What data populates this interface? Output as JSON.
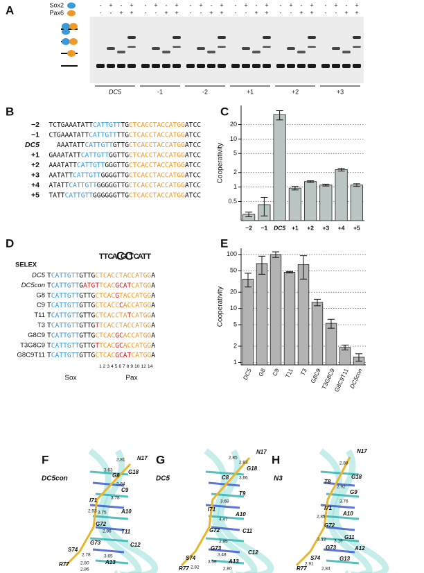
{
  "panel_labels": [
    "A",
    "B",
    "C",
    "D",
    "E",
    "F",
    "G",
    "H"
  ],
  "gel": {
    "row_labels": [
      "Sox2",
      "Pax6"
    ],
    "sox2": [
      "-",
      "+",
      "-",
      "+",
      "-",
      "+",
      "-",
      "+",
      "-",
      "+",
      "-",
      "+",
      "-",
      "+",
      "-",
      "+",
      "-",
      "+",
      "-",
      "+",
      "-",
      "+",
      "-",
      "+"
    ],
    "pax6": [
      "-",
      "-",
      "+",
      "+",
      "-",
      "-",
      "+",
      "+",
      "-",
      "-",
      "+",
      "+",
      "-",
      "-",
      "+",
      "+",
      "-",
      "-",
      "+",
      "+",
      "-",
      "-",
      "+",
      "+"
    ],
    "groups": [
      "DC5",
      "-1",
      "-2",
      "+1",
      "+2",
      "+3"
    ],
    "italic": [
      0
    ]
  },
  "sequences": [
    {
      "label": "−2",
      "segments": [
        {
          "text": "TCTGAAATATT",
          "color": "#111111"
        },
        {
          "text": "CATTGTT",
          "color": "#3a9ad9"
        },
        {
          "text": "TG",
          "color": "#111111"
        },
        {
          "text": "CTCACCTACCATGG",
          "color": "#ee9a2a"
        },
        {
          "text": "ATCC",
          "color": "#111111"
        }
      ]
    },
    {
      "label": "−1",
      "segments": [
        {
          "text": "CTGAAATATT",
          "color": "#111111"
        },
        {
          "text": "CATTGTT",
          "color": "#3a9ad9"
        },
        {
          "text": "TTG",
          "color": "#111111"
        },
        {
          "text": "CTCACCTACCATGG",
          "color": "#ee9a2a"
        },
        {
          "text": "ATCC",
          "color": "#111111"
        }
      ]
    },
    {
      "label": "DC5",
      "italic": true,
      "segments": [
        {
          "text": "AAATATT",
          "color": "#111111"
        },
        {
          "text": "CATTGTT",
          "color": "#3a9ad9"
        },
        {
          "text": "GTTG",
          "color": "#111111"
        },
        {
          "text": "CTCACCTACCATGG",
          "color": "#ee9a2a"
        },
        {
          "text": "ATCC",
          "color": "#111111"
        }
      ]
    },
    {
      "label": "+1",
      "segments": [
        {
          "text": "GAAATATT",
          "color": "#111111"
        },
        {
          "text": "CATTGTT",
          "color": "#3a9ad9"
        },
        {
          "text": "GGTTG",
          "color": "#111111"
        },
        {
          "text": "CTCACCTACCATGG",
          "color": "#ee9a2a"
        },
        {
          "text": "ATCC",
          "color": "#111111"
        }
      ]
    },
    {
      "label": "+2",
      "segments": [
        {
          "text": "AAATATT",
          "color": "#111111"
        },
        {
          "text": "CATTGTT",
          "color": "#3a9ad9"
        },
        {
          "text": "GGGTTG",
          "color": "#111111"
        },
        {
          "text": "CTCACCTACCATGG",
          "color": "#ee9a2a"
        },
        {
          "text": "ATCC",
          "color": "#111111"
        }
      ]
    },
    {
      "label": "+3",
      "segments": [
        {
          "text": "AATATT",
          "color": "#111111"
        },
        {
          "text": "CATTGTT",
          "color": "#3a9ad9"
        },
        {
          "text": "GGGGTTG",
          "color": "#111111"
        },
        {
          "text": "CTCACCTACCATGG",
          "color": "#ee9a2a"
        },
        {
          "text": "ATCC",
          "color": "#111111"
        }
      ]
    },
    {
      "label": "+4",
      "segments": [
        {
          "text": "ATATT",
          "color": "#111111"
        },
        {
          "text": "CATTGTT",
          "color": "#3a9ad9"
        },
        {
          "text": "GGGGGTTG",
          "color": "#111111"
        },
        {
          "text": "CTCACCTACCATGG",
          "color": "#ee9a2a"
        },
        {
          "text": "ATCC",
          "color": "#111111"
        }
      ]
    },
    {
      "label": "+5",
      "segments": [
        {
          "text": "TATT",
          "color": "#111111"
        },
        {
          "text": "CATTGTT",
          "color": "#3a9ad9"
        },
        {
          "text": "GGGGGGTTG",
          "color": "#111111"
        },
        {
          "text": "CTCACCTACCATGG",
          "color": "#ee9a2a"
        },
        {
          "text": "ATCC",
          "color": "#111111"
        }
      ]
    }
  ],
  "chart_data": [
    {
      "type": "bar",
      "y_label": "Cooperativity",
      "log_scale": true,
      "grid": true,
      "color": "#b9c4c3",
      "categories": [
        "−2",
        "−1",
        "DC5",
        "+1",
        "+2",
        "+3",
        "+4",
        "+5"
      ],
      "italic": [
        2
      ],
      "values": [
        0.27,
        0.43,
        32,
        0.95,
        1.3,
        1.1,
        2.3,
        1.1
      ],
      "errors": [
        0.03,
        0.18,
        7,
        0.08,
        0.05,
        0.05,
        0.15,
        0.07
      ],
      "ylim": [
        0.2,
        50
      ],
      "yticks": [
        0.5,
        1,
        2,
        5,
        10,
        20
      ]
    },
    {
      "type": "bar",
      "y_label": "Cooperativity",
      "log_scale": true,
      "grid": true,
      "color": "#b3b3b3",
      "categories": [
        "DC5",
        "G8",
        "C9",
        "T11",
        "T3",
        "G8C9",
        "T3G8C9",
        "G8C9T11",
        "DC5con"
      ],
      "italic": [
        0,
        8
      ],
      "values": [
        35,
        68,
        100,
        47,
        65,
        13,
        5.3,
        1.9,
        1.25
      ],
      "errors": [
        10,
        25,
        12,
        1.5,
        30,
        1.8,
        1,
        0.2,
        0.2
      ],
      "ylim": [
        0.9,
        130
      ],
      "yticks": [
        1,
        2,
        5,
        10,
        20,
        50,
        100
      ]
    }
  ],
  "selex": {
    "title": "SELEX",
    "logo": [
      "T",
      "T",
      "C",
      "A",
      "C",
      "G",
      "C",
      "T",
      "C",
      "A",
      "T",
      "T"
    ],
    "logo_colors": [
      "#d6262b",
      "#d6262b",
      "#2a50c8",
      "#2a9a3a",
      "#2a50c8",
      "#e5a020",
      "#2a50c8",
      "#d6262b",
      "#2a50c8",
      "#2a9a3a",
      "#d6262b",
      "#d6262b"
    ],
    "rows": [
      {
        "name": "DC5",
        "italic": true,
        "segments": [
          {
            "text": "T",
            "color": "#111111"
          },
          {
            "text": "CATTGTT",
            "color": "#3a9ad9"
          },
          {
            "text": "GTTG",
            "color": "#111111"
          },
          {
            "text": "CTCACCTACCATGG",
            "color": "#ee9a2a"
          },
          {
            "text": "A",
            "color": "#111111"
          }
        ]
      },
      {
        "name": "DC5con",
        "italic": true,
        "segments": [
          {
            "text": "T",
            "color": "#111111"
          },
          {
            "text": "CATTGTT",
            "color": "#3a9ad9"
          },
          {
            "text": "G",
            "color": "#111111"
          },
          {
            "text": "ATGT",
            "color": "#d62020"
          },
          {
            "text": "TCAC",
            "color": "#ee9a2a"
          },
          {
            "text": "GCAT",
            "color": "#d62020"
          },
          {
            "text": "CATGG",
            "color": "#ee9a2a"
          },
          {
            "text": "A",
            "color": "#111111"
          }
        ]
      },
      {
        "name": "G8",
        "segments": [
          {
            "text": "T",
            "color": "#111111"
          },
          {
            "text": "CATTGTT",
            "color": "#3a9ad9"
          },
          {
            "text": "GTTG",
            "color": "#111111"
          },
          {
            "text": "CTCAC",
            "color": "#ee9a2a"
          },
          {
            "text": "G",
            "color": "#d62020"
          },
          {
            "text": "TACCATGG",
            "color": "#ee9a2a"
          },
          {
            "text": "A",
            "color": "#111111"
          }
        ]
      },
      {
        "name": "C9",
        "segments": [
          {
            "text": "T",
            "color": "#111111"
          },
          {
            "text": "CATTGTT",
            "color": "#3a9ad9"
          },
          {
            "text": "GTTG",
            "color": "#111111"
          },
          {
            "text": "CTCACC",
            "color": "#ee9a2a"
          },
          {
            "text": "C",
            "color": "#d62020"
          },
          {
            "text": "ACCATGG",
            "color": "#ee9a2a"
          },
          {
            "text": "A",
            "color": "#111111"
          }
        ]
      },
      {
        "name": "T11",
        "segments": [
          {
            "text": "T",
            "color": "#111111"
          },
          {
            "text": "CATTGTT",
            "color": "#3a9ad9"
          },
          {
            "text": "GTTG",
            "color": "#111111"
          },
          {
            "text": "CTCACCTA",
            "color": "#ee9a2a"
          },
          {
            "text": "T",
            "color": "#d62020"
          },
          {
            "text": "CATGG",
            "color": "#ee9a2a"
          },
          {
            "text": "A",
            "color": "#111111"
          }
        ]
      },
      {
        "name": "T3",
        "segments": [
          {
            "text": "T",
            "color": "#111111"
          },
          {
            "text": "CATTGTT",
            "color": "#3a9ad9"
          },
          {
            "text": "GTTG",
            "color": "#111111"
          },
          {
            "text": "T",
            "color": "#d62020"
          },
          {
            "text": "TCACCTACCATGG",
            "color": "#ee9a2a"
          },
          {
            "text": "A",
            "color": "#111111"
          }
        ]
      },
      {
        "name": "G8C9",
        "segments": [
          {
            "text": "T",
            "color": "#111111"
          },
          {
            "text": "CATTGTT",
            "color": "#3a9ad9"
          },
          {
            "text": "GTTG",
            "color": "#111111"
          },
          {
            "text": "CTCAC",
            "color": "#ee9a2a"
          },
          {
            "text": "GC",
            "color": "#d62020"
          },
          {
            "text": "ACCATGG",
            "color": "#ee9a2a"
          },
          {
            "text": "A",
            "color": "#111111"
          }
        ]
      },
      {
        "name": "T3G8C9",
        "segments": [
          {
            "text": "T",
            "color": "#111111"
          },
          {
            "text": "CATTGTT",
            "color": "#3a9ad9"
          },
          {
            "text": "GTTG",
            "color": "#111111"
          },
          {
            "text": "T",
            "color": "#d62020"
          },
          {
            "text": "TCAC",
            "color": "#ee9a2a"
          },
          {
            "text": "GC",
            "color": "#d62020"
          },
          {
            "text": "ACCATGG",
            "color": "#ee9a2a"
          },
          {
            "text": "A",
            "color": "#111111"
          }
        ]
      },
      {
        "name": "G8C9T11",
        "segments": [
          {
            "text": "T",
            "color": "#111111"
          },
          {
            "text": "CATTGTT",
            "color": "#3a9ad9"
          },
          {
            "text": "GTTG",
            "color": "#111111"
          },
          {
            "text": "CTCAC",
            "color": "#ee9a2a"
          },
          {
            "text": "GCAT",
            "color": "#d62020"
          },
          {
            "text": "CATGG",
            "color": "#ee9a2a"
          },
          {
            "text": "A",
            "color": "#111111"
          }
        ]
      }
    ],
    "positions": "1 2 3 4 5 6 7 8 9 10 12 14",
    "sox": "Sox",
    "pax": "Pax"
  },
  "structures": [
    {
      "title": "DC5con",
      "labels": [
        "N17",
        "2.81",
        "G18",
        "3.63",
        "G8",
        "2.84",
        "C9",
        "3.78",
        "I71",
        "A10",
        "2.93",
        "3.75",
        "G72",
        "2.86",
        "T11",
        "G73",
        "S74",
        "C12",
        "2.78",
        "3.65",
        "A13",
        "R77",
        "2.80",
        "2.86"
      ]
    },
    {
      "title": "DC5",
      "labels": [
        "N17",
        "2.85",
        "2.93",
        "G18",
        "C8",
        "3.66",
        "T9",
        "3.68",
        "I71",
        "A10",
        "4.47",
        "G72",
        "C11",
        "2.95",
        "G73",
        "3.48",
        "C12",
        "A13",
        "S74",
        "2.82",
        "3.58",
        "R77",
        "2.80"
      ]
    },
    {
      "title": "N3",
      "labels": [
        "N17",
        "2.88",
        "G18",
        "T8",
        "2.92",
        "G9",
        "3.76",
        "I71",
        "A10",
        "2.85",
        "G72",
        "G11",
        "3.12",
        "3.19",
        "G73",
        "A12",
        "S74",
        "G13",
        "2.91",
        "R77",
        "2.84"
      ]
    }
  ]
}
